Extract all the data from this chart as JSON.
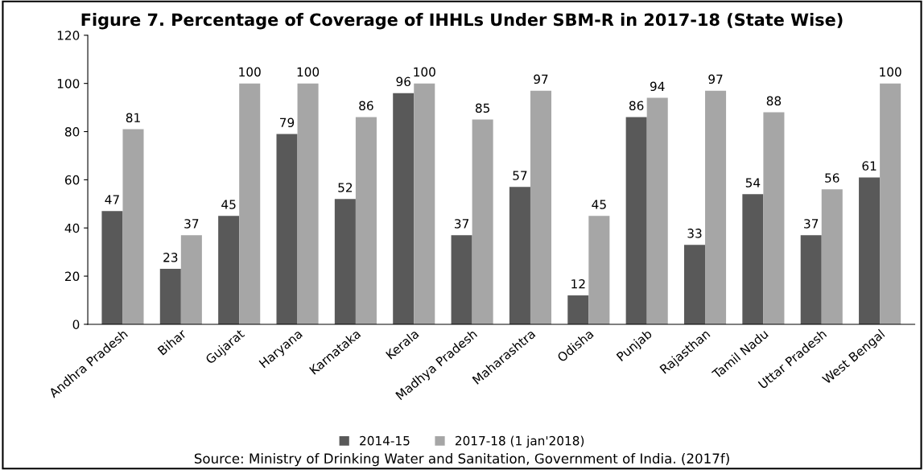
{
  "chart_data": {
    "type": "bar",
    "title": "Figure 7. Percentage of Coverage of IHHLs Under SBM-R in 2017-18 (State Wise)",
    "categories": [
      "Andhra Pradesh",
      "Bihar",
      "Gujarat",
      "Haryana",
      "Karnataka",
      "Kerala",
      "Madhya Pradesh",
      "Maharashtra",
      "Odisha",
      "Punjab",
      "Rajasthan",
      "Tamil Nadu",
      "Uttar Pradesh",
      "West Bengal"
    ],
    "series": [
      {
        "name": "2014-15",
        "color": "#595959",
        "values": [
          47,
          23,
          45,
          79,
          52,
          96,
          37,
          57,
          12,
          86,
          33,
          54,
          37,
          61
        ]
      },
      {
        "name": "2017-18 (1 jan'2018)",
        "color": "#a6a6a6",
        "values": [
          81,
          37,
          100,
          100,
          86,
          100,
          85,
          97,
          45,
          94,
          97,
          88,
          56,
          100
        ]
      }
    ],
    "ylim": [
      0,
      120
    ],
    "yticks": [
      0,
      20,
      40,
      60,
      80,
      100,
      120
    ],
    "grid": false,
    "legend": "bottom",
    "data_labels": true,
    "annotations": [
      "Source: Ministry of Drinking Water and Sanitation, Government of India. (2017f)"
    ]
  }
}
